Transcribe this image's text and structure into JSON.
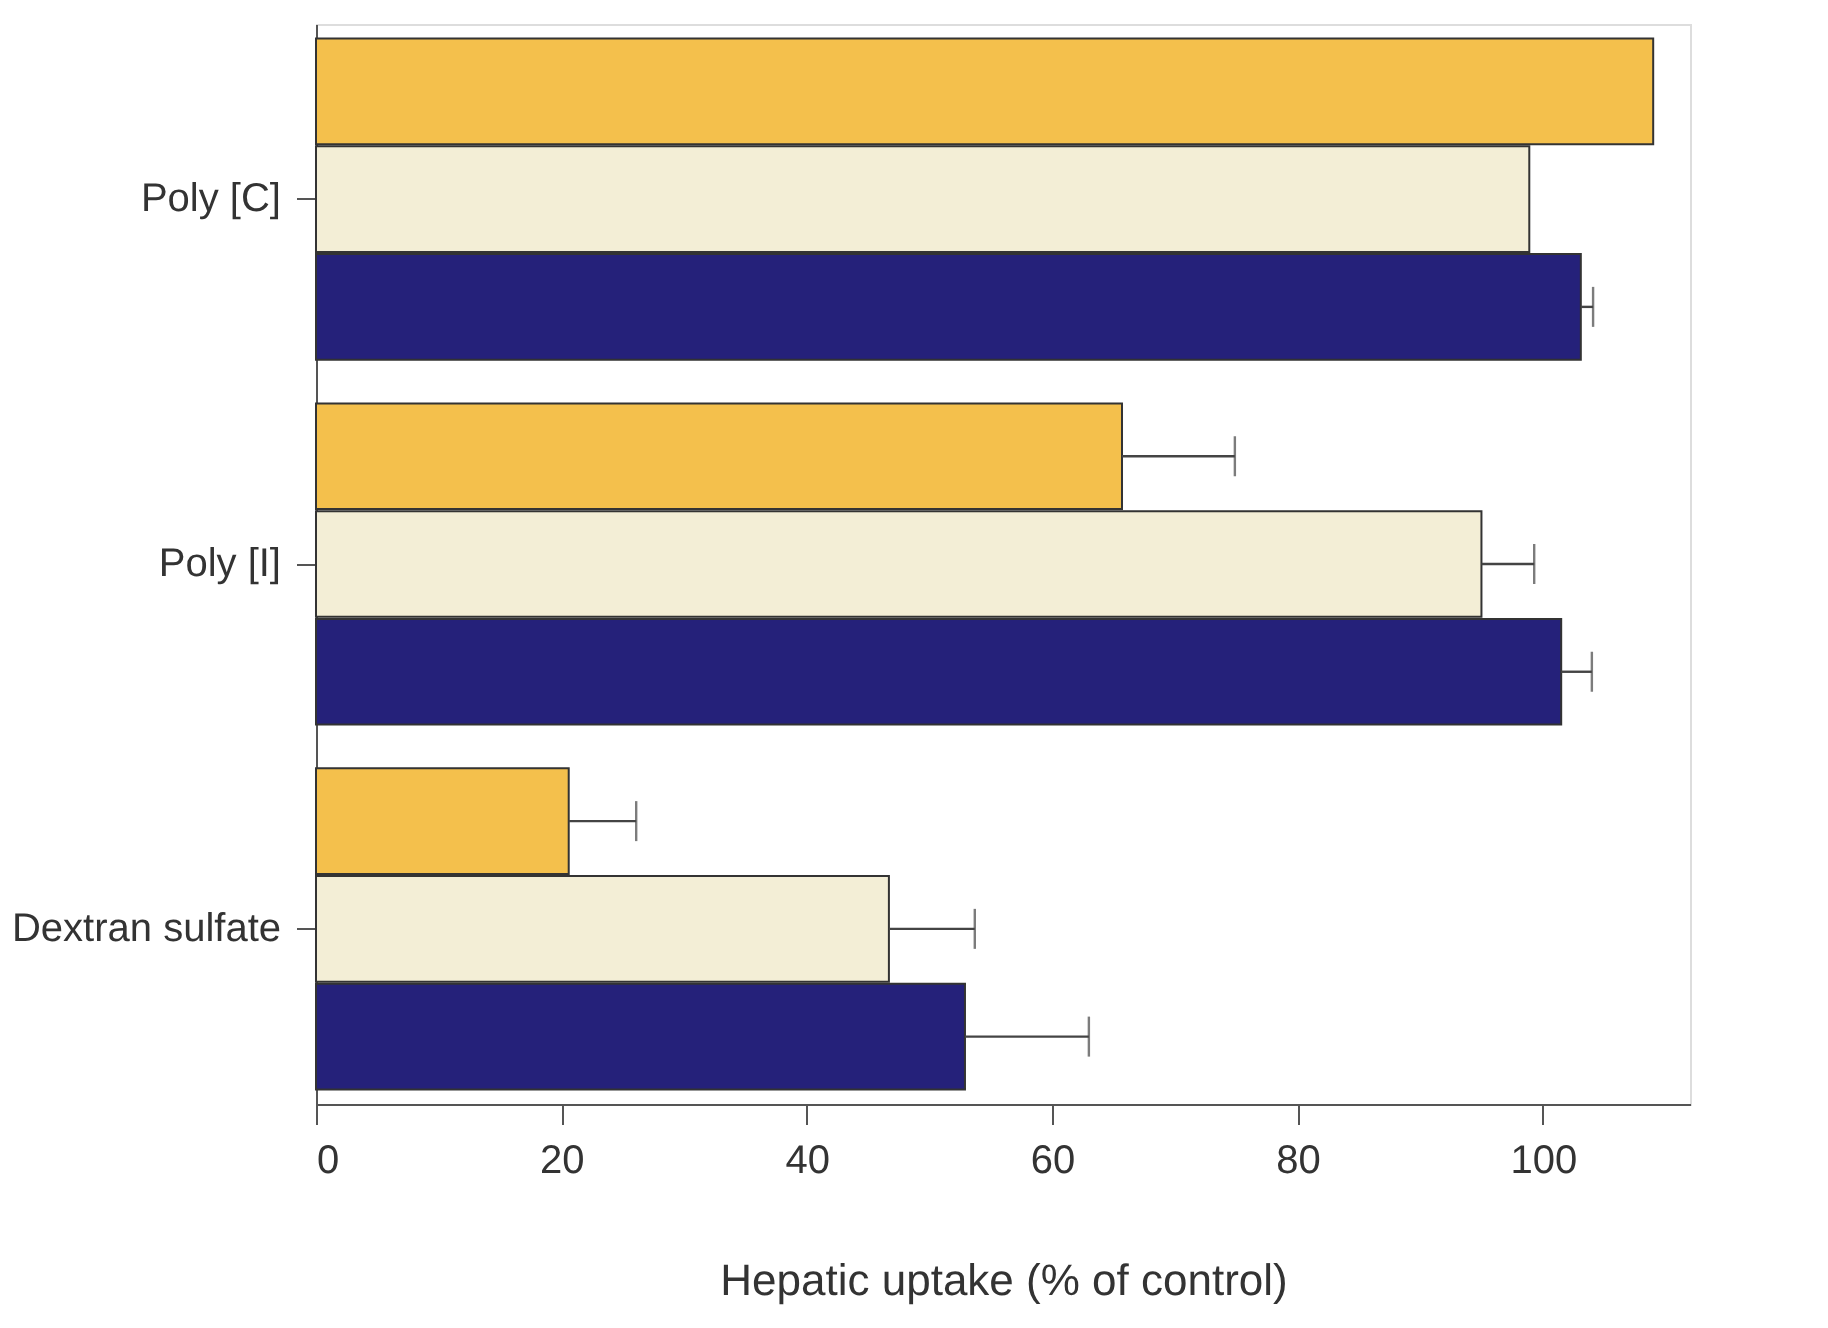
{
  "chart_data": {
    "type": "bar",
    "orientation": "horizontal",
    "xlabel": "Hepatic uptake (% of control)",
    "categories": [
      "Poly [C]",
      "Poly [I]",
      "Dextran sulfate"
    ],
    "series": [
      {
        "color": "#f4c04c",
        "values": [
          109,
          65.7,
          20.6
        ],
        "errors": [
          null,
          [
            65.7,
            74.9
          ],
          [
            20.6,
            26.1
          ]
        ]
      },
      {
        "color": "#f3eed6",
        "values": [
          98.9,
          95,
          46.7
        ],
        "errors": [
          null,
          [
            95,
            99.3
          ],
          [
            46.7,
            53.7
          ]
        ]
      },
      {
        "color": "#25217a",
        "values": [
          103.1,
          101.5,
          52.9
        ],
        "errors": [
          [
            103.1,
            104.1
          ],
          [
            101.5,
            104
          ],
          [
            52.9,
            63
          ]
        ]
      }
    ],
    "xlim": [
      0,
      112
    ],
    "xticks": [
      0,
      20,
      40,
      60,
      80,
      100
    ],
    "grid": false,
    "legend": false
  }
}
